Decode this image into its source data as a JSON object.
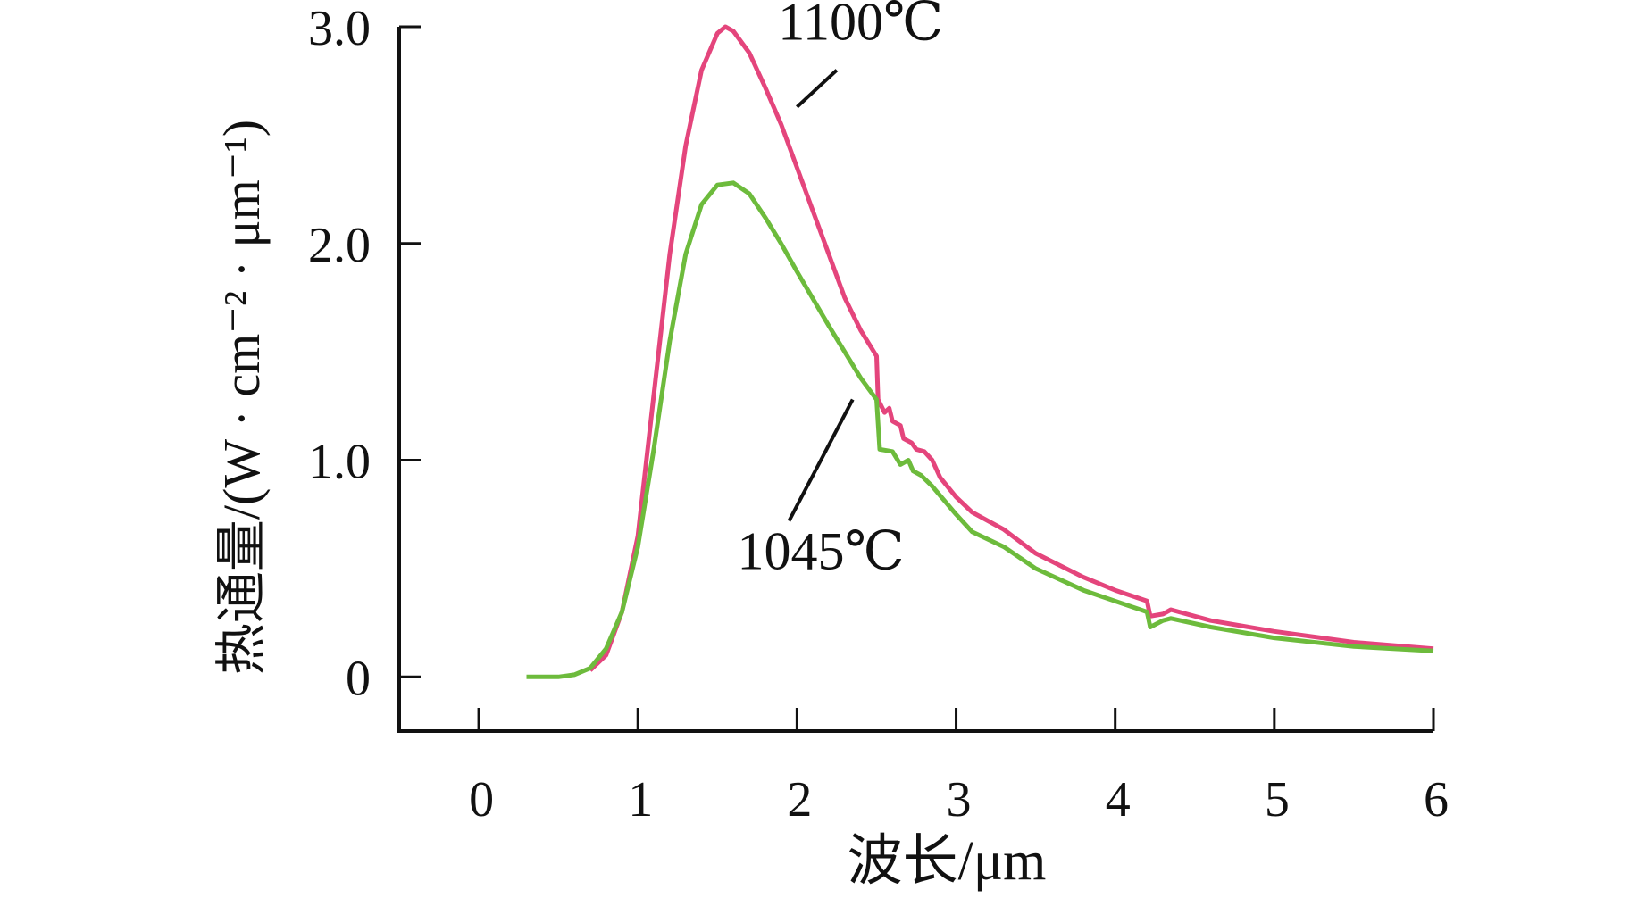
{
  "chart_data": {
    "type": "line",
    "title": "",
    "xlabel": "波长/μm",
    "ylabel": "热通量/(W · cm⁻² · μm⁻¹)",
    "xlim": [
      -0.5,
      6
    ],
    "ylim": [
      -0.25,
      3.0
    ],
    "xticks": [
      0,
      1,
      2,
      3,
      4,
      5,
      6
    ],
    "xtick_labels": [
      "0",
      "1",
      "2",
      "3",
      "4",
      "5",
      "6"
    ],
    "yticks": [
      0,
      1.0,
      2.0,
      3.0
    ],
    "ytick_labels": [
      "0",
      "1.0",
      "2.0",
      "3.0"
    ],
    "grid": false,
    "series": [
      {
        "name": "1100℃",
        "color": "#e4457c",
        "x": [
          0.7,
          0.8,
          0.9,
          1.0,
          1.1,
          1.2,
          1.3,
          1.4,
          1.5,
          1.55,
          1.6,
          1.7,
          1.8,
          1.9,
          2.0,
          2.1,
          2.2,
          2.3,
          2.4,
          2.5,
          2.51,
          2.55,
          2.58,
          2.6,
          2.65,
          2.67,
          2.72,
          2.75,
          2.8,
          2.85,
          2.9,
          3.0,
          3.1,
          3.3,
          3.5,
          3.8,
          4.0,
          4.2,
          4.22,
          4.3,
          4.35,
          4.6,
          5.0,
          5.5,
          6.0
        ],
        "y": [
          0.03,
          0.1,
          0.3,
          0.65,
          1.3,
          1.95,
          2.45,
          2.8,
          2.97,
          3.0,
          2.98,
          2.88,
          2.72,
          2.55,
          2.35,
          2.15,
          1.95,
          1.75,
          1.6,
          1.48,
          1.28,
          1.22,
          1.24,
          1.18,
          1.16,
          1.1,
          1.08,
          1.05,
          1.04,
          1.0,
          0.92,
          0.83,
          0.76,
          0.68,
          0.57,
          0.46,
          0.4,
          0.35,
          0.28,
          0.29,
          0.31,
          0.26,
          0.21,
          0.16,
          0.13
        ]
      },
      {
        "name": "1045℃",
        "color": "#6dbb3c",
        "x": [
          0.3,
          0.5,
          0.6,
          0.7,
          0.8,
          0.9,
          1.0,
          1.1,
          1.2,
          1.3,
          1.4,
          1.5,
          1.6,
          1.7,
          1.8,
          1.9,
          2.0,
          2.2,
          2.4,
          2.5,
          2.52,
          2.6,
          2.65,
          2.7,
          2.73,
          2.78,
          2.85,
          3.0,
          3.1,
          3.3,
          3.5,
          3.8,
          4.2,
          4.22,
          4.3,
          4.35,
          4.6,
          5.0,
          5.5,
          6.0
        ],
        "y": [
          0.0,
          0.0,
          0.01,
          0.04,
          0.13,
          0.3,
          0.6,
          1.05,
          1.55,
          1.95,
          2.18,
          2.27,
          2.28,
          2.23,
          2.12,
          2.0,
          1.87,
          1.62,
          1.38,
          1.28,
          1.05,
          1.04,
          0.98,
          1.0,
          0.95,
          0.93,
          0.88,
          0.75,
          0.67,
          0.6,
          0.5,
          0.4,
          0.3,
          0.23,
          0.26,
          0.27,
          0.23,
          0.18,
          0.14,
          0.12
        ]
      }
    ],
    "annotations": [
      {
        "text": "1100℃",
        "series": "1100℃",
        "x": 2.4,
        "y": 2.92
      },
      {
        "text": "1045℃",
        "series": "1045℃",
        "x": 2.15,
        "y": 0.6
      }
    ]
  }
}
